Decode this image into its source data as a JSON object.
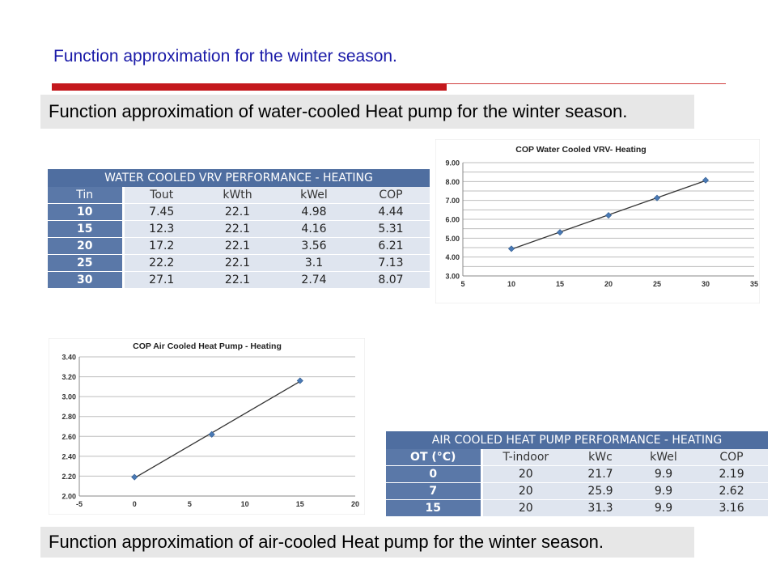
{
  "slide_title": "Function approximation for the winter season.",
  "caption_water": "Function approximation of water-cooled Heat pump for the winter season.",
  "caption_air": "Function approximation of air-cooled Heat pump for the winter season.",
  "water_table": {
    "caption": "WATER COOLED VRV PERFORMANCE - HEATING",
    "headers": [
      "Tin",
      "Tout",
      "kWth",
      "kWel",
      "COP"
    ],
    "rows": [
      [
        "10",
        "7.45",
        "22.1",
        "4.98",
        "4.44"
      ],
      [
        "15",
        "12.3",
        "22.1",
        "4.16",
        "5.31"
      ],
      [
        "20",
        "17.2",
        "22.1",
        "3.56",
        "6.21"
      ],
      [
        "25",
        "22.2",
        "22.1",
        "3.1",
        "7.13"
      ],
      [
        "30",
        "27.1",
        "22.1",
        "2.74",
        "8.07"
      ]
    ]
  },
  "air_table": {
    "caption": "AIR COOLED HEAT PUMP PERFORMANCE - HEATING",
    "headers": [
      "OT (°C)",
      "T-indoor",
      "kWc",
      "kWel",
      "COP"
    ],
    "rows": [
      [
        "0",
        "20",
        "21.7",
        "9.9",
        "2.19"
      ],
      [
        "7",
        "20",
        "25.9",
        "9.9",
        "2.62"
      ],
      [
        "15",
        "20",
        "31.3",
        "9.9",
        "3.16"
      ]
    ]
  },
  "chart_data": [
    {
      "type": "scatter",
      "title": "COP Water Cooled VRV- Heating",
      "x": [
        10,
        15,
        20,
        25,
        30
      ],
      "y": [
        4.44,
        5.31,
        6.21,
        7.13,
        8.07
      ],
      "xlim": [
        5,
        35
      ],
      "ylim": [
        3.0,
        9.0
      ],
      "x_ticks": [
        "5",
        "10",
        "15",
        "20",
        "25",
        "30",
        "35"
      ],
      "y_ticks": [
        "3.00",
        "4.00",
        "5.00",
        "6.00",
        "7.00",
        "8.00",
        "9.00"
      ],
      "y_ticks_half": [
        "3.00",
        "3.00",
        "4.00",
        "4.00",
        "5.00",
        "5.00",
        "6.00",
        "6.00",
        "7.00",
        "7.00",
        "8.00",
        "8.00",
        "9.00"
      ],
      "trendline": "linear",
      "grid": true,
      "marker_color": "#4a7ab5",
      "line_color": "#333333"
    },
    {
      "type": "scatter",
      "title": "COP Air Cooled Heat Pump - Heating",
      "x": [
        0,
        7,
        15
      ],
      "y": [
        2.19,
        2.62,
        3.16
      ],
      "xlim": [
        -5,
        20
      ],
      "ylim": [
        2.0,
        3.4
      ],
      "x_ticks": [
        "-5",
        "0",
        "5",
        "10",
        "15",
        "20"
      ],
      "y_ticks": [
        "2.00",
        "2.20",
        "2.40",
        "2.60",
        "2.80",
        "3.00",
        "3.20",
        "3.40"
      ],
      "trendline": "linear",
      "grid": true,
      "marker_color": "#4a7ab5",
      "line_color": "#333333"
    }
  ],
  "colors": {
    "title_blue": "#1a1aa8",
    "accent_red": "#c4181d",
    "table_header_blue": "#4f6ea0",
    "table_cell": "#dfe5ef"
  }
}
